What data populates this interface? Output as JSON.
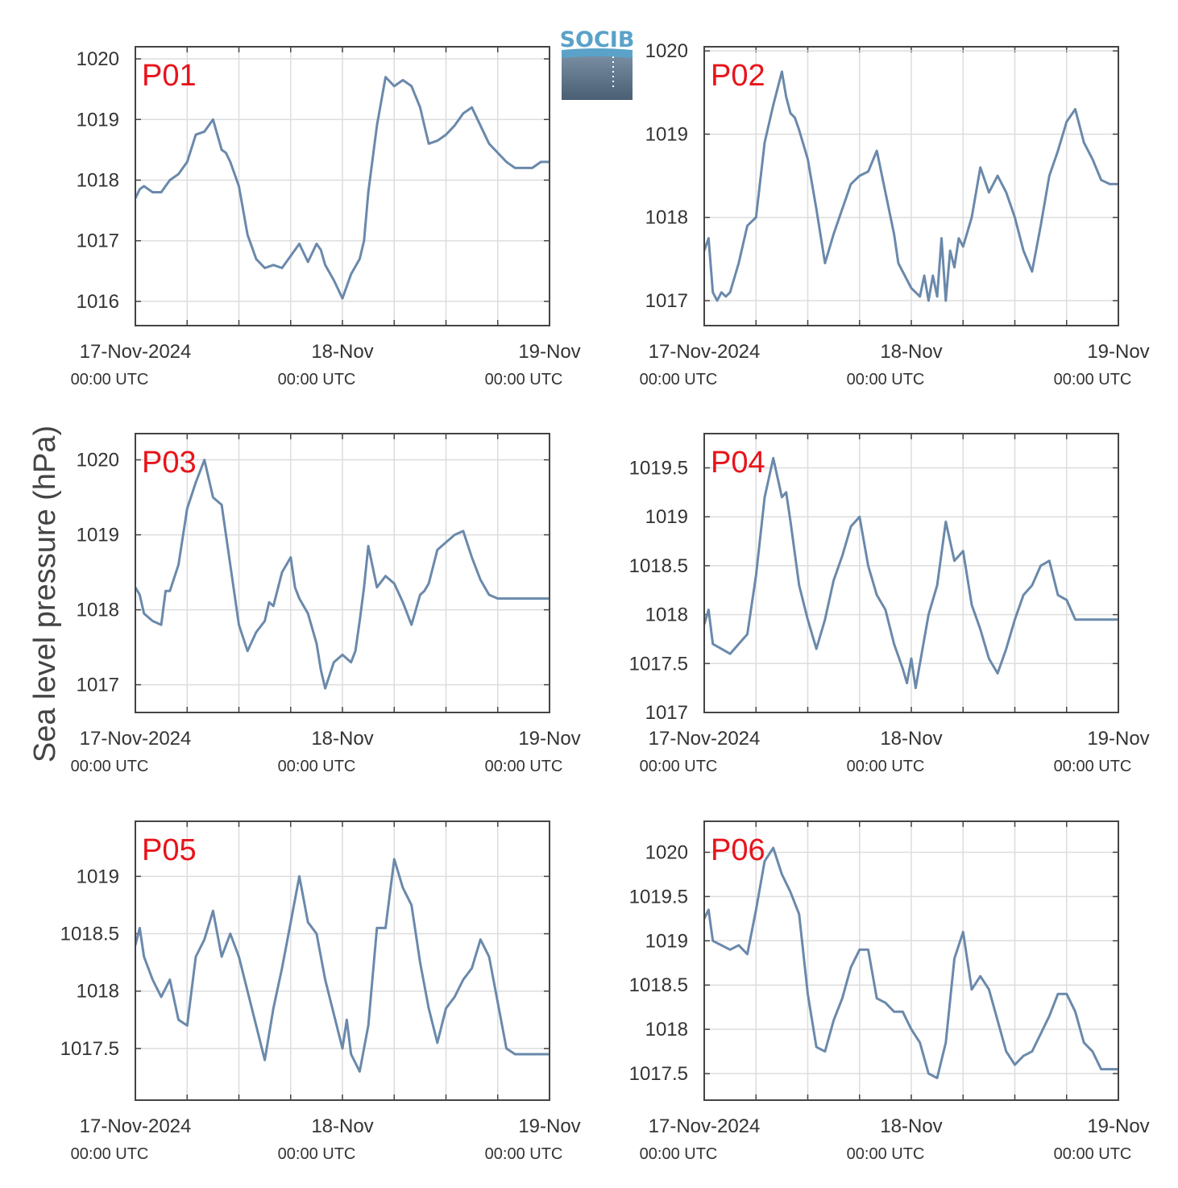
{
  "figure": {
    "ylabel": "Sea level pressure (hPa)",
    "logo_text": "SOCIB"
  },
  "colors": {
    "line": "#6a89ab",
    "label": "#e8131b",
    "grid": "#dddddd",
    "axis": "#444444",
    "logo_top": "#5aa2c8",
    "logo_bottom": "#4a5e74"
  },
  "xaxis": {
    "range_hours": [
      0,
      48
    ],
    "grid_hours": [
      6,
      12,
      18,
      24,
      30,
      36,
      42
    ],
    "ticks": [
      {
        "hour": 0,
        "label": "17-Nov-2024",
        "sub": "00:00 UTC"
      },
      {
        "hour": 24,
        "label": "18-Nov",
        "sub": "00:00 UTC"
      },
      {
        "hour": 48,
        "label": "19-Nov",
        "sub": "00:00 UTC"
      }
    ]
  },
  "chart_data": [
    {
      "type": "line",
      "label": "P01",
      "ylim": [
        1015.6,
        1020.2
      ],
      "yticks": [
        1016,
        1017,
        1018,
        1019,
        1020
      ],
      "x_hours": [
        0,
        0.5,
        1,
        2,
        3,
        4,
        5,
        6,
        7,
        8,
        9,
        10,
        10.5,
        11,
        12,
        13,
        13.5,
        14,
        15,
        16,
        17,
        18,
        19,
        20,
        21,
        21.5,
        22,
        23,
        24,
        25,
        26,
        26.5,
        27,
        28,
        29,
        30,
        31,
        32,
        33,
        33.5,
        34,
        35,
        36,
        37,
        38,
        38.5,
        39,
        40,
        41,
        42,
        43,
        44,
        45,
        46,
        47,
        48
      ],
      "values": [
        1017.7,
        1017.85,
        1017.9,
        1017.8,
        1017.8,
        1018.0,
        1018.1,
        1018.3,
        1018.75,
        1018.8,
        1019.0,
        1018.5,
        1018.45,
        1018.3,
        1017.9,
        1017.1,
        1016.9,
        1016.7,
        1016.55,
        1016.6,
        1016.55,
        1016.75,
        1016.95,
        1016.65,
        1016.95,
        1016.85,
        1016.6,
        1016.35,
        1016.05,
        1016.45,
        1016.7,
        1017.0,
        1017.8,
        1018.9,
        1019.7,
        1019.55,
        1019.65,
        1019.55,
        1019.2,
        1018.9,
        1018.6,
        1018.65,
        1018.75,
        1018.9,
        1019.1,
        1019.15,
        1019.2,
        1018.9,
        1018.6,
        1018.45,
        1018.3,
        1018.2,
        1018.2,
        1018.2,
        1018.3,
        1018.3
      ],
      "extra_note": ""
    },
    {
      "type": "line",
      "label": "P02",
      "ylim": [
        1016.7,
        1020.05
      ],
      "yticks": [
        1017,
        1018,
        1019,
        1020
      ],
      "x_hours": [
        0,
        0.5,
        1,
        1.5,
        2,
        2.5,
        3,
        4,
        5,
        6,
        7,
        8,
        9,
        9.5,
        10,
        10.5,
        11,
        12,
        13,
        14,
        15,
        16,
        17,
        18,
        19,
        20,
        21,
        22,
        22.5,
        23,
        24,
        24.5,
        25,
        25.5,
        26,
        26.5,
        27,
        27.5,
        28,
        28.5,
        29,
        29.5,
        30,
        31,
        32,
        33,
        34,
        35,
        36,
        37,
        38,
        39,
        40,
        41,
        42,
        43,
        44,
        45,
        46,
        47,
        48
      ],
      "values": [
        1017.6,
        1017.75,
        1017.1,
        1017.0,
        1017.1,
        1017.05,
        1017.1,
        1017.45,
        1017.9,
        1018.0,
        1018.9,
        1019.35,
        1019.75,
        1019.45,
        1019.25,
        1019.2,
        1019.05,
        1018.7,
        1018.1,
        1017.45,
        1017.8,
        1018.1,
        1018.4,
        1018.5,
        1018.55,
        1018.8,
        1018.3,
        1017.8,
        1017.45,
        1017.35,
        1017.15,
        1017.1,
        1017.05,
        1017.3,
        1017.0,
        1017.3,
        1017.05,
        1017.75,
        1017.0,
        1017.6,
        1017.4,
        1017.75,
        1017.65,
        1018.0,
        1018.6,
        1018.3,
        1018.5,
        1018.3,
        1018.0,
        1017.6,
        1017.35,
        1017.9,
        1018.5,
        1018.8,
        1019.15,
        1019.3,
        1018.9,
        1018.7,
        1018.45,
        1018.4,
        1018.4
      ],
      "extra_note": ""
    },
    {
      "type": "line",
      "label": "P03",
      "ylim": [
        1016.63,
        1020.35
      ],
      "yticks": [
        1017,
        1018,
        1019,
        1020
      ],
      "x_hours": [
        0,
        0.5,
        1,
        2,
        3,
        3.5,
        4,
        5,
        6,
        7,
        8,
        9,
        10,
        11,
        12,
        13,
        14,
        15,
        15.5,
        16,
        17,
        18,
        18.5,
        19,
        20,
        21,
        21.5,
        22,
        23,
        24,
        25,
        25.5,
        26,
        26.5,
        27,
        28,
        29,
        30,
        31,
        32,
        33,
        33.5,
        34,
        35,
        36,
        37,
        38,
        39,
        40,
        41,
        42,
        43,
        44,
        45,
        46,
        47,
        48
      ],
      "values": [
        1018.3,
        1018.2,
        1017.95,
        1017.85,
        1017.8,
        1018.25,
        1018.25,
        1018.6,
        1019.35,
        1019.7,
        1020.0,
        1019.5,
        1019.4,
        1018.6,
        1017.8,
        1017.45,
        1017.7,
        1017.85,
        1018.1,
        1018.05,
        1018.5,
        1018.7,
        1018.3,
        1018.15,
        1017.95,
        1017.55,
        1017.2,
        1016.95,
        1017.3,
        1017.4,
        1017.3,
        1017.45,
        1017.85,
        1018.3,
        1018.85,
        1018.3,
        1018.45,
        1018.35,
        1018.1,
        1017.8,
        1018.2,
        1018.25,
        1018.35,
        1018.8,
        1018.9,
        1019.0,
        1019.05,
        1018.7,
        1018.4,
        1018.2,
        1018.15,
        1018.15,
        1018.15,
        1018.15,
        1018.15,
        1018.15,
        1018.15
      ],
      "extra_note": ""
    },
    {
      "type": "line",
      "label": "P04",
      "ylim": [
        1017.0,
        1019.85
      ],
      "yticks": [
        1017,
        1017.5,
        1018,
        1018.5,
        1019,
        1019.5
      ],
      "x_hours": [
        0,
        0.5,
        1,
        2,
        3,
        4,
        5,
        6,
        7,
        8,
        9,
        9.5,
        10,
        11,
        12,
        13,
        14,
        15,
        16,
        17,
        18,
        19,
        20,
        21,
        22,
        23,
        23.5,
        24,
        24.5,
        25,
        26,
        27,
        28,
        29,
        30,
        31,
        32,
        33,
        34,
        35,
        36,
        37,
        38,
        39,
        40,
        41,
        42,
        43,
        44,
        45,
        46,
        47,
        48
      ],
      "values": [
        1017.9,
        1018.05,
        1017.7,
        1017.65,
        1017.6,
        1017.7,
        1017.8,
        1018.4,
        1019.2,
        1019.6,
        1019.2,
        1019.25,
        1018.95,
        1018.3,
        1017.95,
        1017.65,
        1017.95,
        1018.35,
        1018.6,
        1018.9,
        1019.0,
        1018.5,
        1018.2,
        1018.05,
        1017.7,
        1017.45,
        1017.3,
        1017.55,
        1017.25,
        1017.5,
        1018.0,
        1018.3,
        1018.95,
        1018.55,
        1018.65,
        1018.1,
        1017.85,
        1017.55,
        1017.4,
        1017.65,
        1017.95,
        1018.2,
        1018.3,
        1018.5,
        1018.55,
        1018.2,
        1018.15,
        1017.95,
        1017.95,
        1017.95,
        1017.95,
        1017.95,
        1017.95
      ],
      "extra_note": ""
    },
    {
      "type": "line",
      "label": "P05",
      "ylim": [
        1017.05,
        1019.48
      ],
      "yticks": [
        1017.5,
        1018,
        1018.5,
        1019
      ],
      "x_hours": [
        0,
        0.5,
        1,
        2,
        3,
        4,
        5,
        6,
        7,
        8,
        9,
        10,
        11,
        12,
        13,
        14,
        15,
        16,
        17,
        18,
        19,
        20,
        21,
        22,
        23,
        24,
        24.5,
        25,
        26,
        27,
        28,
        29,
        30,
        31,
        32,
        33,
        34,
        35,
        36,
        37,
        38,
        39,
        40,
        41,
        42,
        43,
        44,
        45,
        46,
        47,
        48
      ],
      "values": [
        1018.4,
        1018.55,
        1018.3,
        1018.1,
        1017.95,
        1018.1,
        1017.75,
        1017.7,
        1018.3,
        1018.45,
        1018.7,
        1018.3,
        1018.5,
        1018.3,
        1018.0,
        1017.7,
        1017.4,
        1017.85,
        1018.2,
        1018.6,
        1019.0,
        1018.6,
        1018.5,
        1018.1,
        1017.8,
        1017.5,
        1017.75,
        1017.45,
        1017.3,
        1017.7,
        1018.55,
        1018.55,
        1019.15,
        1018.9,
        1018.75,
        1018.25,
        1017.85,
        1017.55,
        1017.85,
        1017.95,
        1018.1,
        1018.2,
        1018.45,
        1018.3,
        1017.9,
        1017.5,
        1017.45,
        1017.45,
        1017.45,
        1017.45,
        1017.45
      ],
      "extra_note": ""
    },
    {
      "type": "line",
      "label": "P06",
      "ylim": [
        1017.2,
        1020.35
      ],
      "yticks": [
        1017.5,
        1018,
        1018.5,
        1019,
        1019.5,
        1020
      ],
      "x_hours": [
        0,
        0.5,
        1,
        2,
        3,
        4,
        5,
        6,
        7,
        8,
        9,
        10,
        11,
        12,
        13,
        14,
        15,
        16,
        17,
        18,
        19,
        20,
        21,
        22,
        23,
        24,
        25,
        26,
        27,
        28,
        29,
        30,
        31,
        32,
        33,
        34,
        35,
        36,
        37,
        38,
        39,
        40,
        41,
        42,
        43,
        44,
        45,
        46,
        47,
        48
      ],
      "values": [
        1019.25,
        1019.35,
        1019.0,
        1018.95,
        1018.9,
        1018.95,
        1018.85,
        1019.35,
        1019.9,
        1020.05,
        1019.75,
        1019.55,
        1019.3,
        1018.4,
        1017.8,
        1017.75,
        1018.1,
        1018.35,
        1018.7,
        1018.9,
        1018.9,
        1018.35,
        1018.3,
        1018.2,
        1018.2,
        1018.0,
        1017.85,
        1017.5,
        1017.45,
        1017.85,
        1018.8,
        1019.1,
        1018.45,
        1018.6,
        1018.45,
        1018.1,
        1017.75,
        1017.6,
        1017.7,
        1017.75,
        1017.95,
        1018.15,
        1018.4,
        1018.4,
        1018.2,
        1017.85,
        1017.75,
        1017.55,
        1017.55,
        1017.55
      ],
      "extra_note": ""
    }
  ]
}
